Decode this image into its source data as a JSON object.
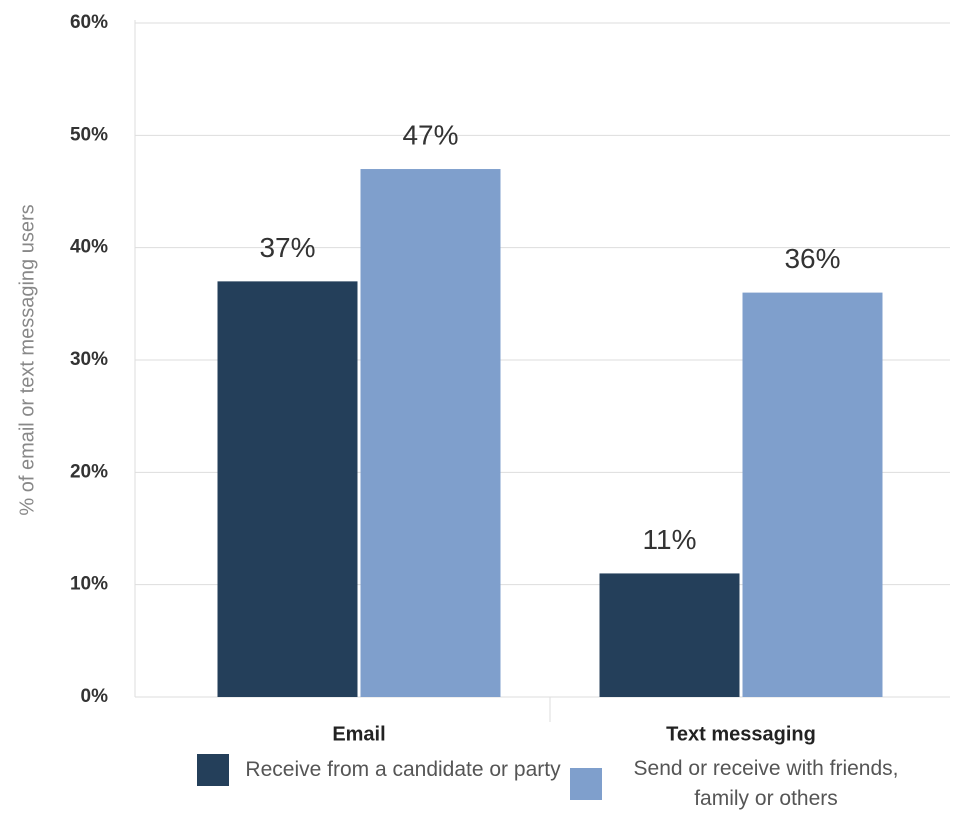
{
  "chart_data": {
    "type": "bar",
    "y_label": "% of email or text messaging users",
    "categories": [
      "Email",
      "Text messaging"
    ],
    "series": [
      {
        "name": "Receive from a candidate or party",
        "color": "#243f5a",
        "values": [
          37,
          11
        ],
        "value_labels": [
          "37%",
          "11%"
        ]
      },
      {
        "name": "Send or receive with friends, family or others",
        "color": "#7f9fcc",
        "values": [
          47,
          36
        ],
        "value_labels": [
          "47%",
          "36%"
        ]
      }
    ],
    "ylim": [
      0,
      60
    ],
    "yticks": [
      {
        "value": 0,
        "label": "0%"
      },
      {
        "value": 10,
        "label": "10%"
      },
      {
        "value": 20,
        "label": "20%"
      },
      {
        "value": 30,
        "label": "30%"
      },
      {
        "value": 40,
        "label": "40%"
      },
      {
        "value": 50,
        "label": "50%"
      },
      {
        "value": 60,
        "label": "60%"
      }
    ],
    "grid": true
  }
}
